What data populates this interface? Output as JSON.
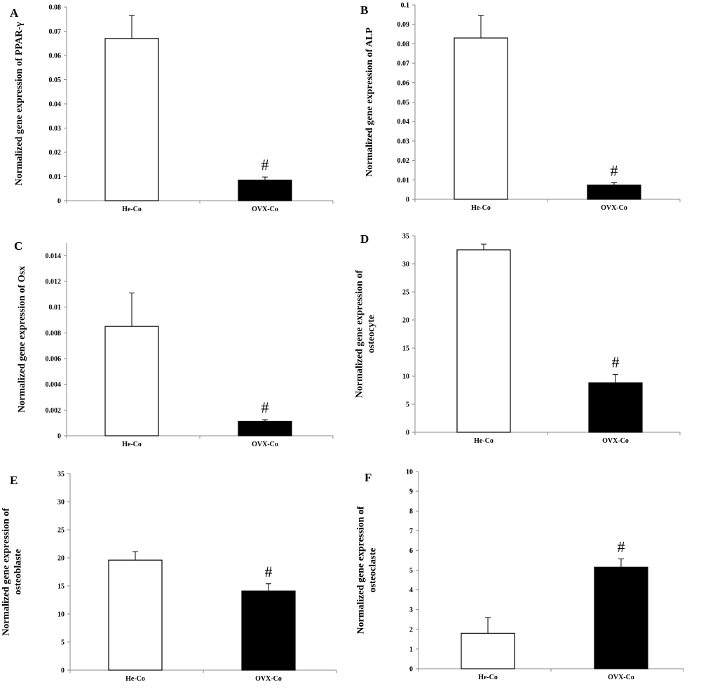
{
  "chart_data": [
    {
      "type": "bar",
      "panel_label": "A",
      "ylabel": [
        "Normalized gene expression of PPAR-γ"
      ],
      "categories": [
        "He-Co",
        "OVX-Co"
      ],
      "values": [
        0.067,
        0.0085
      ],
      "errors": [
        0.0095,
        0.0013
      ],
      "significance": [
        "",
        "#"
      ],
      "ylim": [
        0,
        0.08
      ],
      "yticks": [
        0,
        0.01,
        0.02,
        0.03,
        0.04,
        0.05,
        0.06,
        0.07,
        0.08
      ],
      "ytick_labels": [
        "0",
        "0.01",
        "0.02",
        "0.03",
        "0.04",
        "0.05",
        "0.06",
        "0.07",
        "0.08"
      ],
      "bar_colors": [
        "#ffffff",
        "#000000"
      ],
      "grid": false
    },
    {
      "type": "bar",
      "panel_label": "B",
      "ylabel": [
        "Normalized gene expression of ALP"
      ],
      "categories": [
        "He-Co",
        "OVX-Co"
      ],
      "values": [
        0.083,
        0.0073
      ],
      "errors": [
        0.0115,
        0.0012
      ],
      "significance": [
        "",
        "#"
      ],
      "ylim": [
        0,
        0.1
      ],
      "yticks": [
        0,
        0.01,
        0.02,
        0.03,
        0.04,
        0.05,
        0.06,
        0.07,
        0.08,
        0.09,
        0.1
      ],
      "ytick_labels": [
        "0",
        "0.01",
        "0.02",
        "0.03",
        "0.04",
        "0.05",
        "0.06",
        "0.07",
        "0.08",
        "0.09",
        "0.1"
      ],
      "bar_colors": [
        "#ffffff",
        "#000000"
      ],
      "grid": false
    },
    {
      "type": "bar",
      "panel_label": "C",
      "ylabel": [
        "Normalized gene expression of Osx"
      ],
      "categories": [
        "He-Co",
        "OVX-Co"
      ],
      "values": [
        0.0085,
        0.00112
      ],
      "errors": [
        0.0026,
        0.00013
      ],
      "significance": [
        "",
        "#"
      ],
      "ylim": [
        0,
        0.015
      ],
      "yticks": [
        0,
        0.002,
        0.004,
        0.006,
        0.008,
        0.01,
        0.012,
        0.014
      ],
      "ytick_labels": [
        "0",
        "0.002",
        "0.004",
        "0.006",
        "0.008",
        "0.01",
        "0.012",
        "0.014"
      ],
      "bar_colors": [
        "#ffffff",
        "#000000"
      ],
      "grid": false
    },
    {
      "type": "bar",
      "panel_label": "D",
      "ylabel": [
        "Normalized gene expression of",
        "osteocyte"
      ],
      "categories": [
        "He-Co",
        "OVX-Co"
      ],
      "values": [
        32.5,
        8.8
      ],
      "errors": [
        1.0,
        1.5
      ],
      "significance": [
        "",
        "#"
      ],
      "ylim": [
        0,
        35
      ],
      "yticks": [
        0,
        5,
        10,
        15,
        20,
        25,
        30,
        35
      ],
      "ytick_labels": [
        "0",
        "5",
        "10",
        "15",
        "20",
        "25",
        "30",
        "35"
      ],
      "bar_colors": [
        "#ffffff",
        "#000000"
      ],
      "grid": false
    },
    {
      "type": "bar",
      "panel_label": "E",
      "ylabel": [
        "Normalized gene expression of",
        "osteoblaste"
      ],
      "categories": [
        "He-Co",
        "OVX-Co"
      ],
      "values": [
        19.6,
        14.1
      ],
      "errors": [
        1.5,
        1.3
      ],
      "significance": [
        "",
        "#"
      ],
      "ylim": [
        0,
        35
      ],
      "yticks": [
        0,
        5,
        10,
        15,
        20,
        25,
        30,
        35
      ],
      "ytick_labels": [
        "0",
        "5",
        "10",
        "15",
        "20",
        "25",
        "30",
        "35"
      ],
      "bar_colors": [
        "#ffffff",
        "#000000"
      ],
      "grid": false
    },
    {
      "type": "bar",
      "panel_label": "F",
      "ylabel": [
        "Normalized gene expression of",
        "osteoclaste"
      ],
      "categories": [
        "He-Co",
        "OVX-Co"
      ],
      "values": [
        1.8,
        5.15
      ],
      "errors": [
        0.8,
        0.42
      ],
      "significance": [
        "",
        "#"
      ],
      "ylim": [
        0,
        10
      ],
      "yticks": [
        0,
        1,
        2,
        3,
        4,
        5,
        6,
        7,
        8,
        9,
        10
      ],
      "ytick_labels": [
        "0",
        "1",
        "2",
        "3",
        "4",
        "5",
        "6",
        "7",
        "8",
        "9",
        "10"
      ],
      "bar_colors": [
        "#ffffff",
        "#000000"
      ],
      "grid": false
    }
  ]
}
